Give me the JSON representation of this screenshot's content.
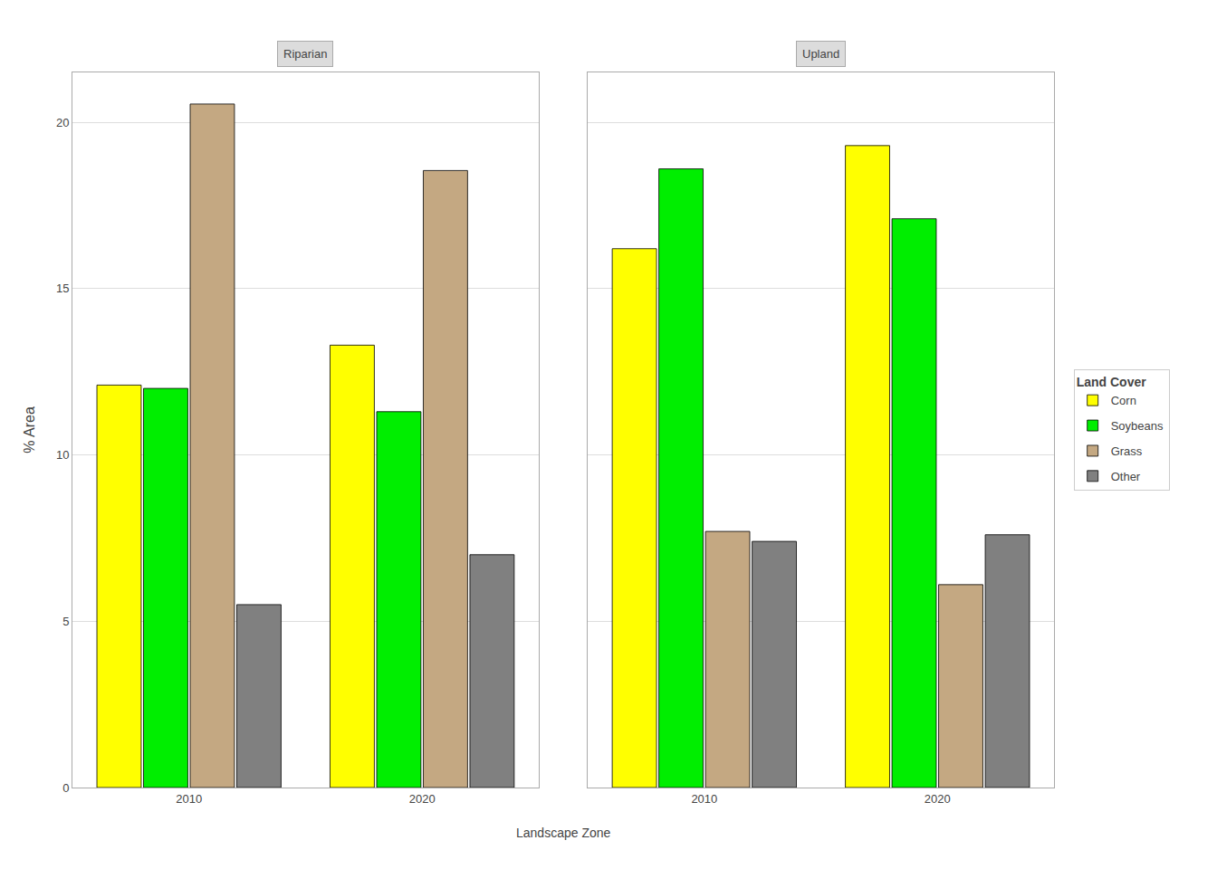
{
  "chart_data": [
    {
      "type": "bar",
      "title": "Riparian",
      "xlabel": "Landscape Zone",
      "ylabel": "% Area",
      "legend_title": "Land Cover",
      "legend": "right",
      "categories": [
        "2010",
        "2020"
      ],
      "series": [
        {
          "name": "Corn",
          "color": "#FFFF00",
          "values": [
            12.1,
            13.3
          ]
        },
        {
          "name": "Soybeans",
          "color": "#00EE00",
          "values": [
            12.0,
            11.3
          ]
        },
        {
          "name": "Grass",
          "color": "#C4A882",
          "values": [
            20.55,
            18.55
          ]
        },
        {
          "name": "Other",
          "color": "#808080",
          "values": [
            5.5,
            7.0
          ]
        }
      ],
      "ylim": [
        0,
        21.5
      ],
      "yticks": [
        0,
        5,
        10,
        15,
        20
      ],
      "grid": true
    },
    {
      "type": "bar",
      "title": "Upland",
      "categories": [
        "2010",
        "2020"
      ],
      "series": [
        {
          "name": "Corn",
          "color": "#FFFF00",
          "values": [
            16.2,
            19.3
          ]
        },
        {
          "name": "Soybeans",
          "color": "#00EE00",
          "values": [
            18.6,
            17.1
          ]
        },
        {
          "name": "Grass",
          "color": "#C4A882",
          "values": [
            7.7,
            6.1
          ]
        },
        {
          "name": "Other",
          "color": "#808080",
          "values": [
            7.4,
            7.6
          ]
        }
      ],
      "ylim": [
        0,
        21.5
      ],
      "yticks": [
        0,
        5,
        10,
        15,
        20
      ],
      "grid": true,
      "tick_labels": "x"
    }
  ]
}
